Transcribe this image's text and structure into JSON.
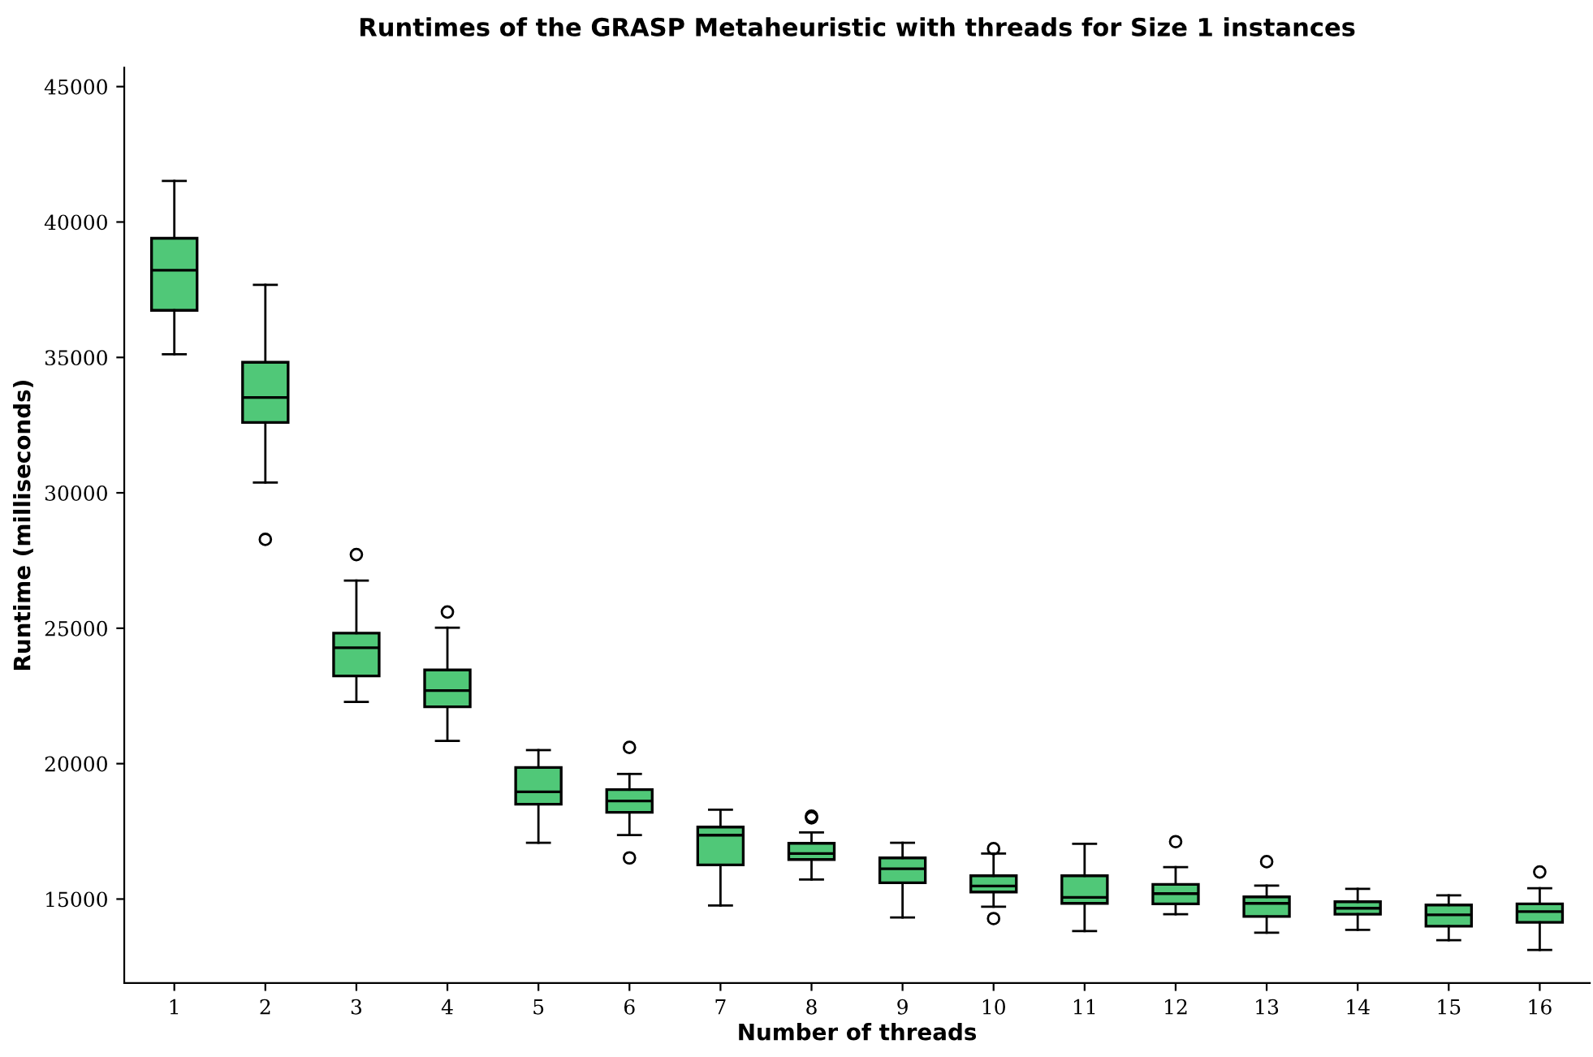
{
  "chart_data": {
    "type": "box",
    "title": "Runtimes of the GRASP Metaheuristic with threads for Size 1 instances",
    "xlabel": "Number of threads",
    "ylabel": "Runtime (milliseconds)",
    "categories": [
      "1",
      "2",
      "3",
      "4",
      "5",
      "6",
      "7",
      "8",
      "9",
      "10",
      "11",
      "12",
      "13",
      "14",
      "15",
      "16"
    ],
    "color": "#50c878",
    "boxes": [
      {
        "low": 35120,
        "q1": 36740,
        "median": 38220,
        "q3": 39400,
        "high": 41520
      },
      {
        "low": 30380,
        "q1": 32600,
        "median": 33520,
        "q3": 34820,
        "high": 37680,
        "outliers": [
          28280
        ]
      },
      {
        "low": 22280,
        "q1": 23240,
        "median": 24280,
        "q3": 24820,
        "high": 26760,
        "outliers": [
          27720
        ]
      },
      {
        "low": 20840,
        "q1": 22100,
        "median": 22700,
        "q3": 23460,
        "high": 25020,
        "outliers": [
          25600
        ]
      },
      {
        "low": 17080,
        "q1": 18500,
        "median": 18960,
        "q3": 19860,
        "high": 20500
      },
      {
        "low": 17360,
        "q1": 18200,
        "median": 18620,
        "q3": 19040,
        "high": 19620,
        "outliers": [
          20600,
          16520
        ]
      },
      {
        "low": 14760,
        "q1": 16260,
        "median": 17360,
        "q3": 17660,
        "high": 18300
      },
      {
        "low": 15720,
        "q1": 16460,
        "median": 16680,
        "q3": 17060,
        "high": 17460,
        "outliers": [
          18000,
          18060
        ]
      },
      {
        "low": 14320,
        "q1": 15600,
        "median": 16120,
        "q3": 16520,
        "high": 17080
      },
      {
        "low": 14720,
        "q1": 15260,
        "median": 15480,
        "q3": 15860,
        "high": 16680,
        "outliers": [
          16860,
          14280
        ]
      },
      {
        "low": 13820,
        "q1": 14840,
        "median": 15060,
        "q3": 15860,
        "high": 17040
      },
      {
        "low": 14440,
        "q1": 14820,
        "median": 15200,
        "q3": 15540,
        "high": 16180,
        "outliers": [
          17120
        ]
      },
      {
        "low": 13760,
        "q1": 14360,
        "median": 14840,
        "q3": 15080,
        "high": 15500,
        "outliers": [
          16380
        ]
      },
      {
        "low": 13860,
        "q1": 14440,
        "median": 14660,
        "q3": 14900,
        "high": 15380
      },
      {
        "low": 13480,
        "q1": 14000,
        "median": 14420,
        "q3": 14780,
        "high": 15140
      },
      {
        "low": 13120,
        "q1": 14140,
        "median": 14540,
        "q3": 14820,
        "high": 15400,
        "outliers": [
          16000
        ]
      }
    ],
    "ylim": [
      11900,
      45700
    ],
    "yticks": [
      15000,
      20000,
      25000,
      30000,
      35000,
      40000,
      45000
    ],
    "grid": false
  }
}
